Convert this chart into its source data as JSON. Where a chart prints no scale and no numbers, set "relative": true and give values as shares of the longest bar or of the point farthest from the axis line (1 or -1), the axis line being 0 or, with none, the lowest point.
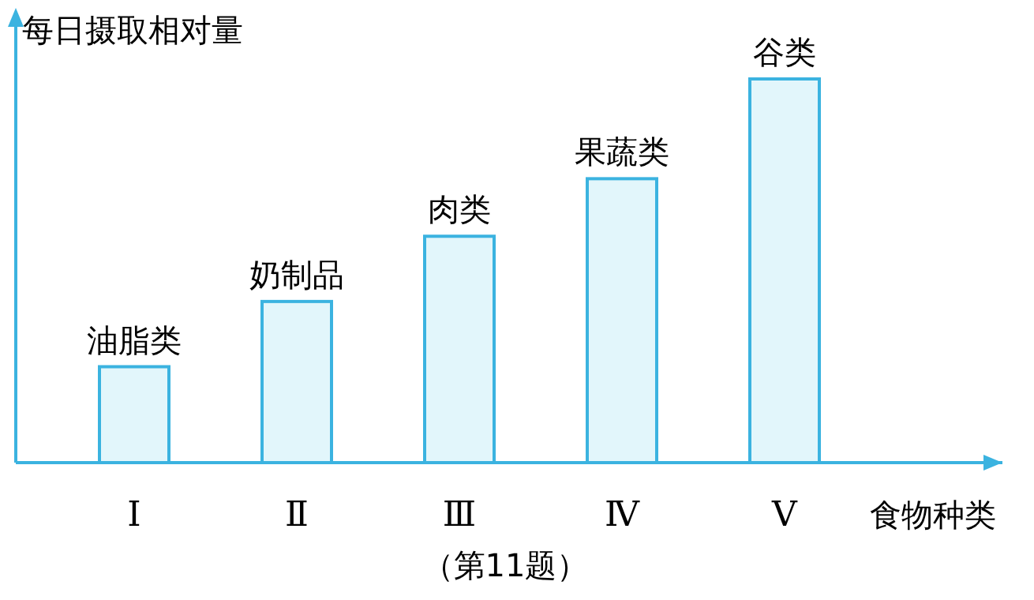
{
  "chart_data": {
    "type": "bar",
    "relative": true,
    "categories": [
      "Ⅰ",
      "Ⅱ",
      "Ⅲ",
      "Ⅳ",
      "Ⅴ"
    ],
    "values": [
      0.25,
      0.42,
      0.59,
      0.74,
      1
    ],
    "color": "#e2f6fb",
    "xlabel": "食物种类",
    "ylabel": "每日摄取相对量",
    "annotations": [
      {
        "text": "油脂类",
        "x": "Ⅰ",
        "y": 0.25
      },
      {
        "text": "奶制品",
        "x": "Ⅱ",
        "y": 0.42
      },
      {
        "text": "肉类",
        "x": "Ⅲ",
        "y": 0.59
      },
      {
        "text": "果蔬类",
        "x": "Ⅳ",
        "y": 0.74
      },
      {
        "text": "谷类",
        "x": "Ⅴ",
        "y": 1
      },
      "（第11题）"
    ]
  }
}
